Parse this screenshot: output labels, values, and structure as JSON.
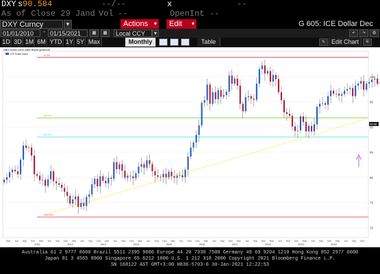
{
  "header": {
    "ticker": "DXY",
    "last_prefix": "s",
    "last_value": "90.584",
    "pct_change": "--/--",
    "change_x": "x",
    "change_dashes": "--",
    "as_of": "As of Close 29 Jand",
    "vol_label": "Vol",
    "vol_value": "--",
    "openint_label": "OpenInt",
    "openint_value": "--"
  },
  "toolbar": {
    "security": "DXY Curncy",
    "security_dropdown": "▾",
    "actions": "Actions",
    "edit": "Edit",
    "page_title": "G 605: ICE Dollar Dec",
    "date_from": "01/01/2010",
    "date_sep": "-",
    "date_to": "01/15/2021",
    "currency": "Local CCY",
    "currency_dropdown": "▾",
    "table": "Table",
    "edit_chart": "Edit Chart"
  },
  "periods": [
    {
      "label": "1D"
    },
    {
      "label": "3D"
    },
    {
      "label": "1M"
    },
    {
      "label": "6M"
    },
    {
      "label": "YTD"
    },
    {
      "label": "1Y"
    },
    {
      "label": "5Y"
    },
    {
      "label": "Max"
    }
  ],
  "frequency": "Monthly",
  "frequency_dropdown": "▼",
  "chart_data": {
    "type": "candlestick",
    "title": "ABD Doları uzun vade teknik görünüm",
    "legend": "ICE Dollar Index",
    "ylim": [
      68,
      105
    ],
    "yticks": [
      70,
      75,
      80,
      85,
      90,
      95,
      100
    ],
    "x_years": [
      "2011",
      "2012",
      "2013",
      "2014",
      "2015",
      "2016",
      "2017",
      "2018",
      "2019",
      "2020"
    ],
    "month_labels": [
      "Mar",
      "Jun",
      "Sep",
      "Dec"
    ],
    "fib_levels": [
      {
        "label": "0.0%",
        "value": 103.8,
        "color": "#e0303a"
      },
      {
        "label": "38.2%",
        "value": 91.8,
        "color": "#7ad03e"
      },
      {
        "label": "50.0%",
        "value": 88.0,
        "color": "#3fd7e0"
      },
      {
        "label": "100.0%",
        "value": 72.1,
        "color": "#e0303a"
      }
    ],
    "trendline": {
      "start": [
        2011.4,
        72.8
      ],
      "end": [
        2021.0,
        91.5
      ],
      "color": "#f5e633"
    },
    "last_price": "90.58",
    "source": "Source: Bloomberg",
    "closes": [
      79.5,
      80.0,
      81.0,
      81.5,
      81.2,
      80.6,
      83.5,
      86.3,
      85.8,
      85.9,
      84.3,
      80.6,
      80.3,
      79.4,
      79.5,
      78.3,
      79.6,
      81.2,
      79.2,
      78.8,
      78.5,
      77.9,
      77.1,
      76.3,
      74.8,
      75.6,
      76.2,
      74.1,
      74.9,
      74.3,
      76.1,
      76.6,
      78.6,
      79.7,
      78.2,
      80.2,
      79.3,
      78.8,
      79.9,
      79.7,
      83.0,
      81.6,
      82.6,
      81.3,
      79.9,
      80.3,
      80.2,
      79.8,
      80.8,
      82.1,
      82.6,
      81.9,
      83.4,
      82.6,
      81.2,
      80.4,
      80.1,
      80.0,
      80.7,
      80.0,
      81.1,
      80.2,
      79.9,
      80.3,
      80.4,
      80.0,
      81.5,
      84.1,
      85.9,
      86.9,
      88.4,
      90.3,
      94.8,
      95.3,
      98.4,
      94.6,
      96.9,
      95.5,
      97.3,
      96.0,
      96.3,
      97.0,
      100.2,
      98.6,
      99.6,
      98.2,
      94.6,
      93.1,
      95.9,
      96.1,
      95.6,
      95.4,
      98.6,
      101.5,
      102.2,
      100.6,
      101.1,
      99.0,
      100.3,
      99.5,
      96.9,
      95.3,
      92.9,
      92.6,
      92.2,
      90.1,
      89.2,
      89.3,
      92.1,
      91.0,
      89.1,
      90.2,
      89.1,
      90.5,
      94.0,
      94.6,
      94.7,
      94.4,
      96.1,
      97.2,
      96.6,
      96.6,
      96.2,
      96.5,
      97.2,
      97.5,
      97.7,
      96.1,
      98.2,
      98.6,
      99.1,
      97.4,
      98.6,
      98.9,
      99.4,
      99.6,
      98.6,
      98.8,
      96.4,
      99.1,
      98.9,
      98.3,
      97.3,
      93.3,
      92.1,
      92.2,
      93.9,
      94.0,
      91.9,
      89.9
    ]
  },
  "footer": {
    "line1": "Australia 61 2 9777 8600 Brazil 5511 2395 9000 Europe 44 20 7330 7500 Germany 49 69 9204 1210 Hong Kong 852 2977 6000",
    "line2": "Japan 81 3 4565 8900          Singapore 65 6212 1000        U.S. 1 212 318 2000          Copyright 2021 Bloomberg Finance L.P.",
    "line3": "SN 168122 AST  GMT+3:00 H836-5703-0 30-Jan-2021 12:22:53"
  },
  "colors": {
    "up": "#2b5fbf",
    "down": "#b3203a",
    "accent": "#f29b23",
    "actions_bg": "#b8001e"
  }
}
